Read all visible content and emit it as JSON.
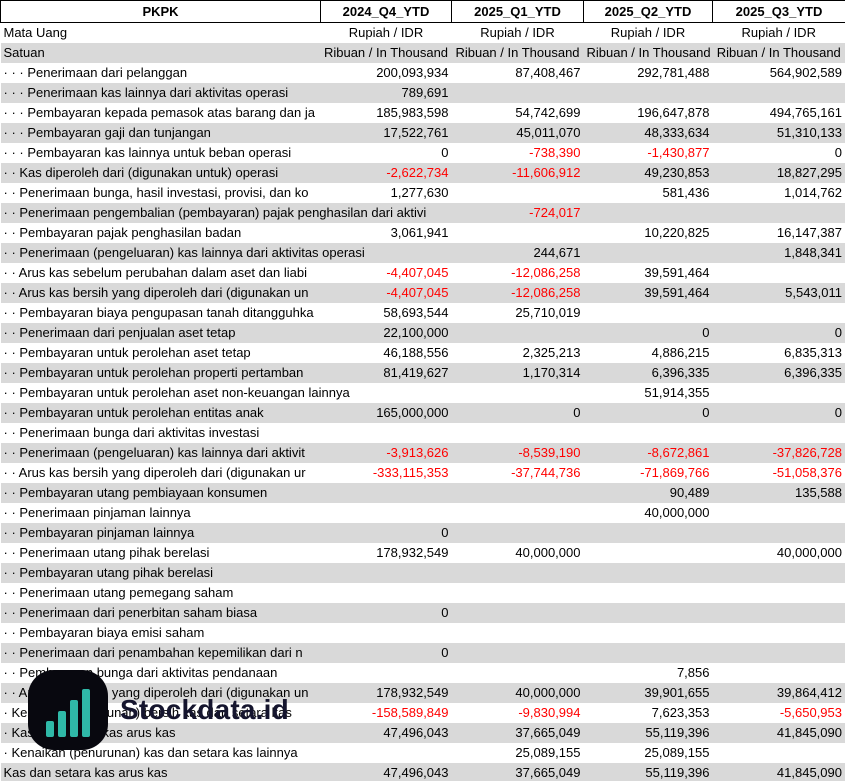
{
  "table": {
    "company_code": "PKPK",
    "periods": [
      "2024_Q4_YTD",
      "2025_Q1_YTD",
      "2025_Q2_YTD",
      "2025_Q3_YTD"
    ],
    "currency_row": {
      "label": "Mata Uang",
      "values": [
        "Rupiah / IDR",
        "Rupiah / IDR",
        "Rupiah / IDR",
        "Rupiah / IDR"
      ]
    },
    "unit_row": {
      "label": "Satuan",
      "values": [
        "Ribuan / In Thousand",
        "Ribuan / In Thousand",
        "Ribuan / In Thousand",
        "Ribuan / In Thousand"
      ]
    },
    "rows": [
      {
        "label": "· · · Penerimaan dari pelanggan",
        "values": [
          "200,093,934",
          "87,408,467",
          "292,781,488",
          "564,902,589"
        ]
      },
      {
        "label": "· · · Penerimaan kas lainnya dari aktivitas operasi",
        "values": [
          "789,691",
          "",
          "",
          ""
        ]
      },
      {
        "label": "· · · Pembayaran kepada pemasok atas barang dan ja",
        "values": [
          "185,983,598",
          "54,742,699",
          "196,647,878",
          "494,765,161"
        ]
      },
      {
        "label": "· · · Pembayaran gaji dan tunjangan",
        "values": [
          "17,522,761",
          "45,011,070",
          "48,333,634",
          "51,310,133"
        ]
      },
      {
        "label": "· · · Pembayaran kas lainnya untuk beban operasi",
        "values": [
          "0",
          "-738,390",
          "-1,430,877",
          "0"
        ]
      },
      {
        "label": "· · Kas diperoleh dari (digunakan untuk) operasi",
        "values": [
          "-2,622,734",
          "-11,606,912",
          "49,230,853",
          "18,827,295"
        ]
      },
      {
        "label": "· · Penerimaan bunga, hasil investasi, provisi, dan ko",
        "values": [
          "1,277,630",
          "",
          "581,436",
          "1,014,762"
        ]
      },
      {
        "label": "· · Penerimaan pengembalian (pembayaran) pajak penghasilan dari aktivi",
        "values": [
          "",
          "-724,017",
          "",
          ""
        ]
      },
      {
        "label": "· · Pembayaran pajak penghasilan badan",
        "values": [
          "3,061,941",
          "",
          "10,220,825",
          "16,147,387"
        ]
      },
      {
        "label": "· · Penerimaan (pengeluaran) kas lainnya dari aktivitas operasi",
        "values": [
          "",
          "244,671",
          "",
          "1,848,341"
        ]
      },
      {
        "label": "· · Arus kas sebelum perubahan dalam aset dan liabi",
        "values": [
          "-4,407,045",
          "-12,086,258",
          "39,591,464",
          ""
        ]
      },
      {
        "label": "· · Arus kas bersih yang diperoleh dari (digunakan un",
        "values": [
          "-4,407,045",
          "-12,086,258",
          "39,591,464",
          "5,543,011"
        ]
      },
      {
        "label": "· · Pembayaran biaya pengupasan tanah ditangguhka",
        "values": [
          "58,693,544",
          "25,710,019",
          "",
          ""
        ]
      },
      {
        "label": "· · Penerimaan dari penjualan aset tetap",
        "values": [
          "22,100,000",
          "",
          "0",
          "0"
        ]
      },
      {
        "label": "· · Pembayaran untuk perolehan aset tetap",
        "values": [
          "46,188,556",
          "2,325,213",
          "4,886,215",
          "6,835,313"
        ]
      },
      {
        "label": "· · Pembayaran untuk perolehan properti pertamban",
        "values": [
          "81,419,627",
          "1,170,314",
          "6,396,335",
          "6,396,335"
        ]
      },
      {
        "label": "· · Pembayaran untuk perolehan aset non-keuangan lainnya",
        "values": [
          "",
          "",
          "51,914,355",
          ""
        ]
      },
      {
        "label": "· · Pembayaran untuk perolehan entitas anak",
        "values": [
          "165,000,000",
          "0",
          "0",
          "0"
        ]
      },
      {
        "label": "· · Penerimaan bunga dari aktivitas investasi",
        "values": [
          "",
          "",
          "",
          ""
        ]
      },
      {
        "label": "· · Penerimaan (pengeluaran) kas lainnya dari aktivit",
        "values": [
          "-3,913,626",
          "-8,539,190",
          "-8,672,861",
          "-37,826,728"
        ]
      },
      {
        "label": "· · Arus kas bersih yang diperoleh dari (digunakan ur",
        "values": [
          "-333,115,353",
          "-37,744,736",
          "-71,869,766",
          "-51,058,376"
        ]
      },
      {
        "label": "· · Pembayaran utang pembiayaan konsumen",
        "values": [
          "",
          "",
          "90,489",
          "135,588"
        ]
      },
      {
        "label": "· · Penerimaan pinjaman lainnya",
        "values": [
          "",
          "",
          "40,000,000",
          ""
        ]
      },
      {
        "label": "· · Pembayaran pinjaman lainnya",
        "values": [
          "0",
          "",
          "",
          ""
        ]
      },
      {
        "label": "· · Penerimaan utang pihak berelasi",
        "values": [
          "178,932,549",
          "40,000,000",
          "",
          "40,000,000"
        ]
      },
      {
        "label": "· · Pembayaran utang pihak berelasi",
        "values": [
          "",
          "",
          "",
          ""
        ]
      },
      {
        "label": "· · Penerimaan utang pemegang saham",
        "values": [
          "",
          "",
          "",
          ""
        ]
      },
      {
        "label": "· · Penerimaan dari penerbitan saham biasa",
        "values": [
          "0",
          "",
          "",
          ""
        ]
      },
      {
        "label": "· · Pembayaran biaya emisi saham",
        "values": [
          "",
          "",
          "",
          ""
        ]
      },
      {
        "label": "· · Penerimaan dari penambahan kepemilikan dari n",
        "values": [
          "0",
          "",
          "",
          ""
        ]
      },
      {
        "label": "· · Pembayaran bunga dari aktivitas pendanaan",
        "values": [
          "",
          "",
          "7,856",
          ""
        ]
      },
      {
        "label": "· · Arus kas bersih yang diperoleh dari (digunakan un",
        "values": [
          "178,932,549",
          "40,000,000",
          "39,901,655",
          "39,864,412"
        ]
      },
      {
        "label": "· Kenaikan (penurunan) bersih kas dan setara kas",
        "values": [
          "-158,589,849",
          "-9,830,994",
          "7,623,353",
          "-5,650,953"
        ]
      },
      {
        "label": "· Kas dan setara kas arus kas",
        "values": [
          "47,496,043",
          "37,665,049",
          "55,119,396",
          "41,845,090"
        ]
      },
      {
        "label": "· Kenaikan (penurunan) kas dan setara kas lainnya",
        "values": [
          "",
          "25,089,155",
          "25,089,155",
          ""
        ]
      },
      {
        "label": "Kas dan setara kas arus kas",
        "values": [
          "47,496,043",
          "37,665,049",
          "55,119,396",
          "41,845,090"
        ]
      }
    ]
  },
  "watermark": {
    "text": "Stockdata.id",
    "logo_icon": "bar-chart-icon",
    "logo_bg": "#08080f",
    "logo_bar_color": "#2fb9a8",
    "text_color": "#15152e"
  },
  "colors": {
    "row_alt": "#d9d9d9",
    "negative": "#ff0000",
    "border": "#000000"
  }
}
